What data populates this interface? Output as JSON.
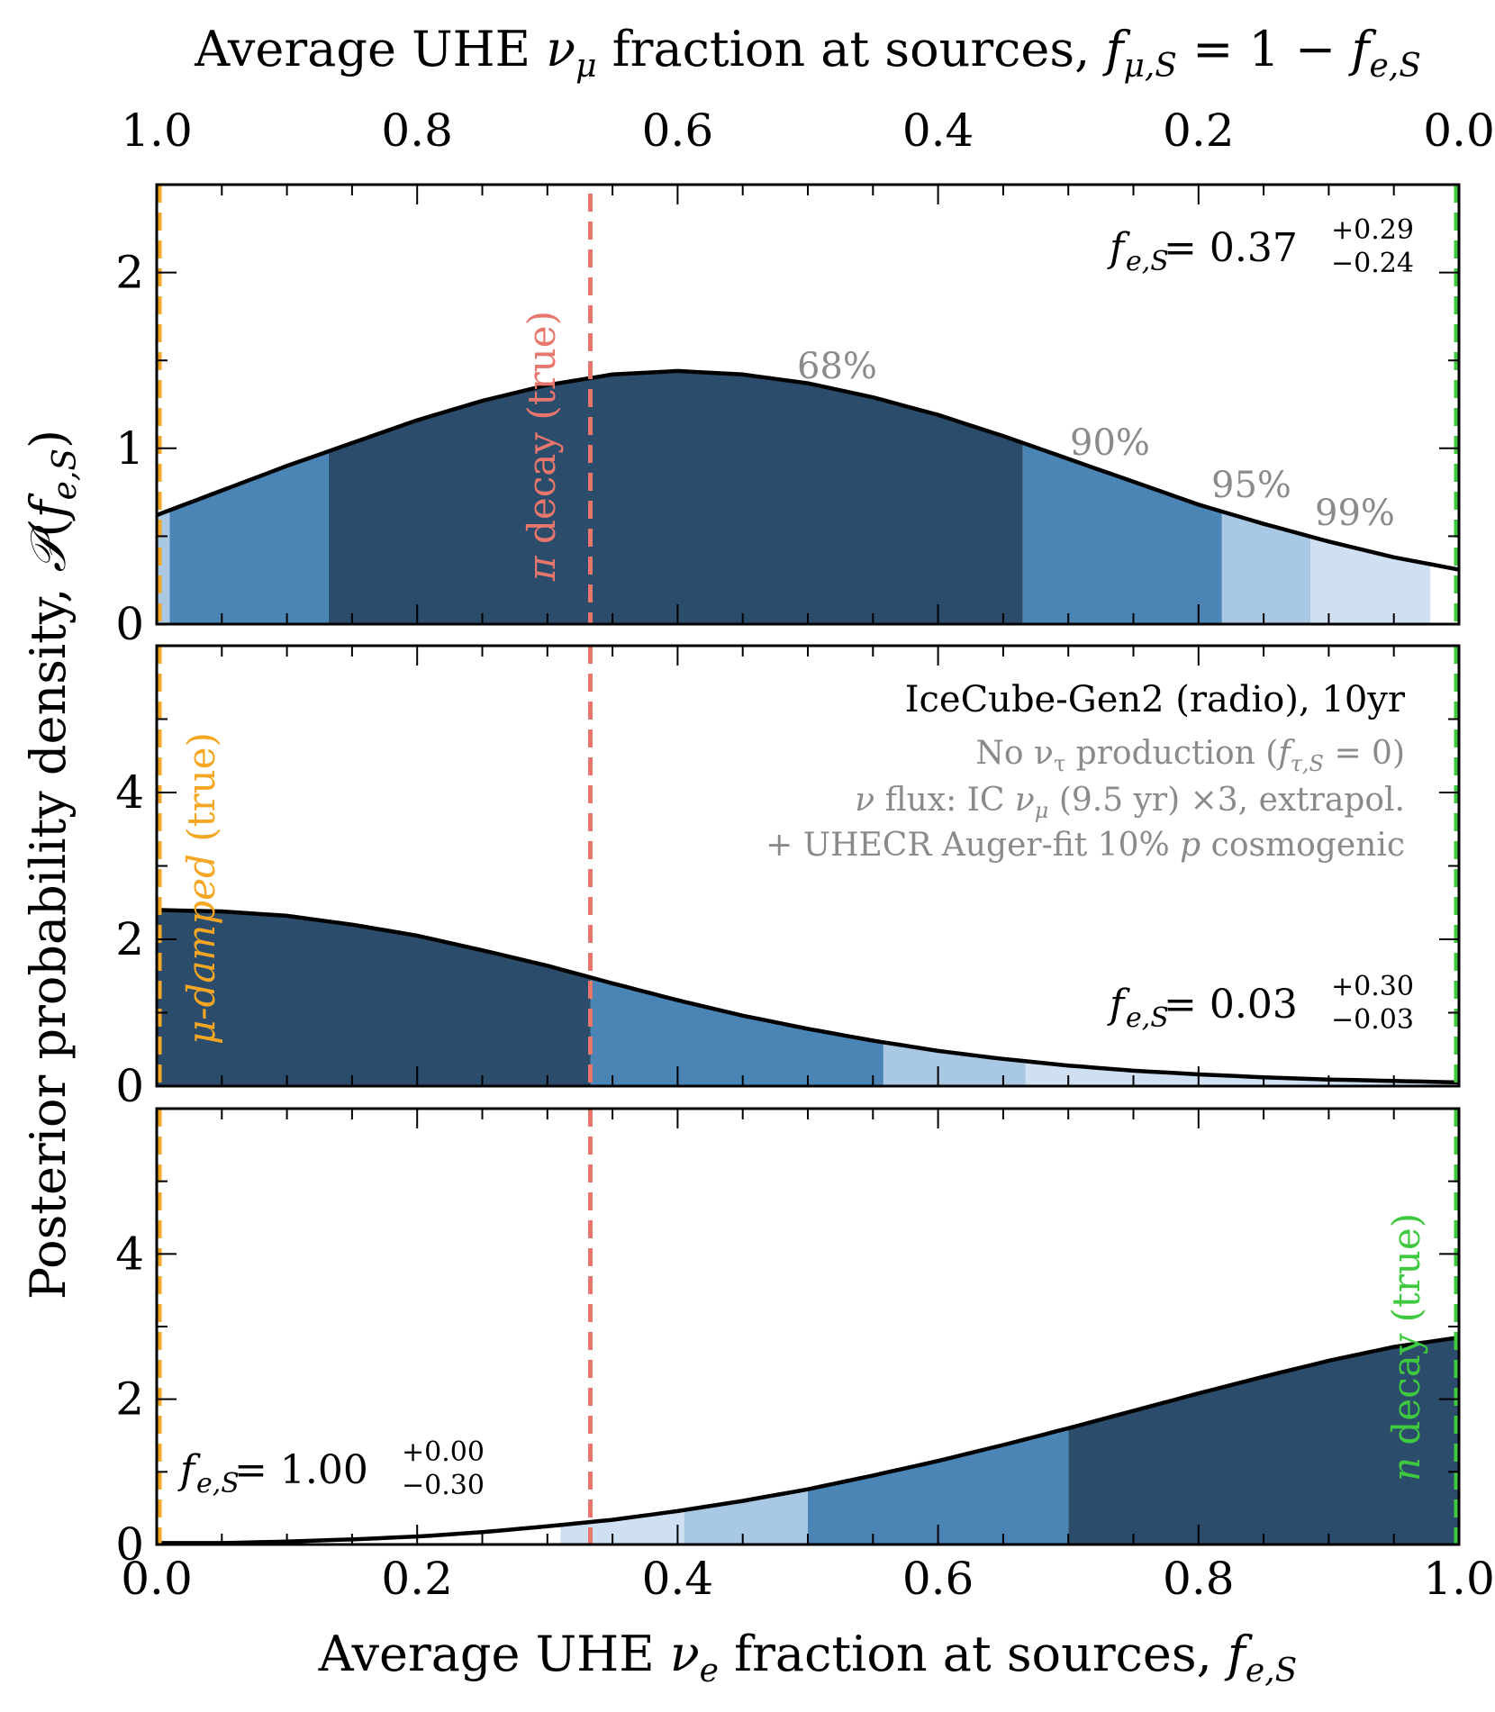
{
  "chart_data": [
    {
      "type": "area",
      "panel": "top",
      "title": "Average UHE ν_μ fraction at sources, f_μ,S = 1 − f_e,S",
      "top_axis_ticks": [
        "1.0",
        "0.8",
        "0.6",
        "0.4",
        "0.2",
        "0.0"
      ],
      "xlim": [
        0,
        1
      ],
      "ylim": [
        0,
        2.5
      ],
      "yticks": [
        "0",
        "1",
        "2"
      ],
      "annotation": "f_e,S = 0.37 +0.29 −0.24",
      "region_labels": [
        "68%",
        "90%",
        "95%",
        "99%"
      ],
      "true_lines": [
        {
          "x": 0.0,
          "color": "#f5a623"
        },
        {
          "x": 0.333,
          "color": "#e8766d"
        },
        {
          "x": 1.0,
          "color": "#3ec93e"
        }
      ],
      "vertical_labels": [
        {
          "text": "π decay (true)",
          "x": 0.31
        }
      ],
      "curve": {
        "x": [
          0,
          0.05,
          0.1,
          0.15,
          0.2,
          0.25,
          0.3,
          0.35,
          0.4,
          0.45,
          0.5,
          0.55,
          0.6,
          0.65,
          0.7,
          0.75,
          0.8,
          0.85,
          0.9,
          0.95,
          1.0
        ],
        "y": [
          0.62,
          0.76,
          0.9,
          1.03,
          1.16,
          1.27,
          1.36,
          1.42,
          1.44,
          1.42,
          1.37,
          1.29,
          1.19,
          1.07,
          0.94,
          0.81,
          0.68,
          0.57,
          0.47,
          0.38,
          0.31
        ]
      },
      "regions": [
        {
          "level": "68%",
          "from": 0.132,
          "to": 0.665,
          "color": "#2b4d6b"
        },
        {
          "level": "90%",
          "from": 0.01,
          "to": 0.132,
          "color": "#4a85b5"
        },
        {
          "level": "90%",
          "from": 0.665,
          "to": 0.818,
          "color": "#4a85b5"
        },
        {
          "level": "95%",
          "from": 0.0,
          "to": 0.01,
          "color": "#a8c8e3"
        },
        {
          "level": "95%",
          "from": 0.818,
          "to": 0.886,
          "color": "#a8c8e3"
        },
        {
          "level": "99%",
          "from": 0.886,
          "to": 0.978,
          "color": "#cfe0f2"
        }
      ]
    },
    {
      "type": "area",
      "panel": "middle",
      "xlim": [
        0,
        1
      ],
      "ylim": [
        0,
        6
      ],
      "yticks": [
        "0",
        "2",
        "4"
      ],
      "legend_title": "IceCube-Gen2 (radio), 10yr",
      "legend_lines": [
        "No ν_τ production (f_τ,S = 0)",
        "ν flux: IC ν_μ (9.5 yr) ×3, extrapol.",
        "+ UHECR Auger-fit 10% p cosmogenic"
      ],
      "annotation": "f_e,S = 0.03 +0.30 −0.03",
      "vertical_labels": [
        {
          "text": "μ-damped (true)",
          "x": 0.04
        }
      ],
      "curve": {
        "x": [
          0,
          0.05,
          0.1,
          0.15,
          0.2,
          0.25,
          0.3,
          0.35,
          0.4,
          0.45,
          0.5,
          0.55,
          0.6,
          0.65,
          0.7,
          0.75,
          0.8,
          0.85,
          0.9,
          0.95,
          1.0
        ],
        "y": [
          2.4,
          2.38,
          2.32,
          2.2,
          2.05,
          1.85,
          1.64,
          1.4,
          1.17,
          0.96,
          0.78,
          0.62,
          0.48,
          0.37,
          0.28,
          0.21,
          0.16,
          0.12,
          0.09,
          0.07,
          0.05
        ]
      },
      "regions": [
        {
          "level": "68%",
          "from": 0.0,
          "to": 0.333,
          "color": "#2b4d6b"
        },
        {
          "level": "90%",
          "from": 0.333,
          "to": 0.558,
          "color": "#4a85b5"
        },
        {
          "level": "95%",
          "from": 0.558,
          "to": 0.667,
          "color": "#a8c8e3"
        },
        {
          "level": "99%",
          "from": 0.667,
          "to": 1.0,
          "color": "#cfe0f2"
        }
      ]
    },
    {
      "type": "area",
      "panel": "bottom",
      "xlim": [
        0,
        1
      ],
      "ylim": [
        0,
        6
      ],
      "yticks": [
        "0",
        "2",
        "4"
      ],
      "xticks": [
        "0.0",
        "0.2",
        "0.4",
        "0.6",
        "0.8",
        "1.0"
      ],
      "xlabel": "Average UHE ν_e fraction at sources, f_e,S",
      "ylabel": "Posterior probability density, 𝒫(f_e,S)",
      "annotation": "f_e,S = 1.00 +0.00 −0.30",
      "vertical_labels": [
        {
          "text": "n decay (true)",
          "x": 0.975
        }
      ],
      "curve": {
        "x": [
          0,
          0.05,
          0.1,
          0.15,
          0.2,
          0.25,
          0.3,
          0.35,
          0.4,
          0.45,
          0.5,
          0.55,
          0.6,
          0.65,
          0.7,
          0.75,
          0.8,
          0.85,
          0.9,
          0.95,
          1.0
        ],
        "y": [
          0.02,
          0.02,
          0.04,
          0.07,
          0.11,
          0.17,
          0.25,
          0.34,
          0.46,
          0.6,
          0.76,
          0.95,
          1.15,
          1.37,
          1.6,
          1.84,
          2.08,
          2.31,
          2.53,
          2.72,
          2.85
        ]
      },
      "regions": [
        {
          "level": "68%",
          "from": 0.7,
          "to": 1.0,
          "color": "#2b4d6b"
        },
        {
          "level": "90%",
          "from": 0.5,
          "to": 0.7,
          "color": "#4a85b5"
        },
        {
          "level": "95%",
          "from": 0.405,
          "to": 0.5,
          "color": "#a8c8e3"
        },
        {
          "level": "99%",
          "from": 0.31,
          "to": 0.405,
          "color": "#cfe0f2"
        }
      ]
    }
  ],
  "text": {
    "top_title_a": "Average UHE ",
    "top_title_nu": "ν",
    "top_title_sub": "μ",
    "top_title_b": " fraction at sources, ",
    "top_title_f1": "f",
    "top_title_f1sub": "μ,S",
    "top_title_eq": " = 1 − ",
    "top_title_f2": "f",
    "top_title_f2sub": "e,S",
    "bottom_title_a": "Average UHE ",
    "bottom_title_nu": "ν",
    "bottom_title_sub": "e",
    "bottom_title_b": " fraction at sources, ",
    "bottom_title_f": "f",
    "bottom_title_fsub": "e,S",
    "ylabel_a": "Posterior probability density, ",
    "ylabel_p": "𝒫",
    "ylabel_open": "(",
    "ylabel_f": "f",
    "ylabel_fsub": "e,S",
    "ylabel_close": ")",
    "ann_f": "f",
    "ann_sub": "e,S",
    "ann1_val": " = 0.37",
    "ann1_up": "+0.29",
    "ann1_dn": "−0.24",
    "ann2_val": " = 0.03",
    "ann2_up": "+0.30",
    "ann2_dn": "−0.03",
    "ann3_val": " = 1.00",
    "ann3_up": "+0.00",
    "ann3_dn": "−0.30",
    "pi_a": "π",
    "pi_b": " decay (true)",
    "mu_a": "μ",
    "mu_b": "-damped",
    "mu_c": " (true)",
    "n_a": "n",
    "n_b": " decay",
    "n_c": "(true)",
    "leg_title": "IceCube-Gen2 (radio), 10yr",
    "leg1_a": "No ν",
    "leg1_sub": "τ",
    "leg1_b": " production (",
    "leg1_f": "f",
    "leg1_fsub": "τ,S",
    "leg1_c": " = 0)",
    "leg2_a": "ν",
    "leg2_b": " flux: IC ",
    "leg2_nu": "ν",
    "leg2_sub": "μ",
    "leg2_c": " (9.5 yr) ×3, extrapol.",
    "leg3_a": "+ UHECR Auger-fit 10% ",
    "leg3_p": "p",
    "leg3_b": " cosmogenic"
  },
  "colors": {
    "c68": "#2b4d6b",
    "c90": "#4a85b5",
    "c95": "#a8c8e3",
    "c99": "#cfe0f2",
    "pi": "#e8766d",
    "mu": "#f5a623",
    "n": "#3ec93e",
    "grey": "#8a8a8a"
  }
}
